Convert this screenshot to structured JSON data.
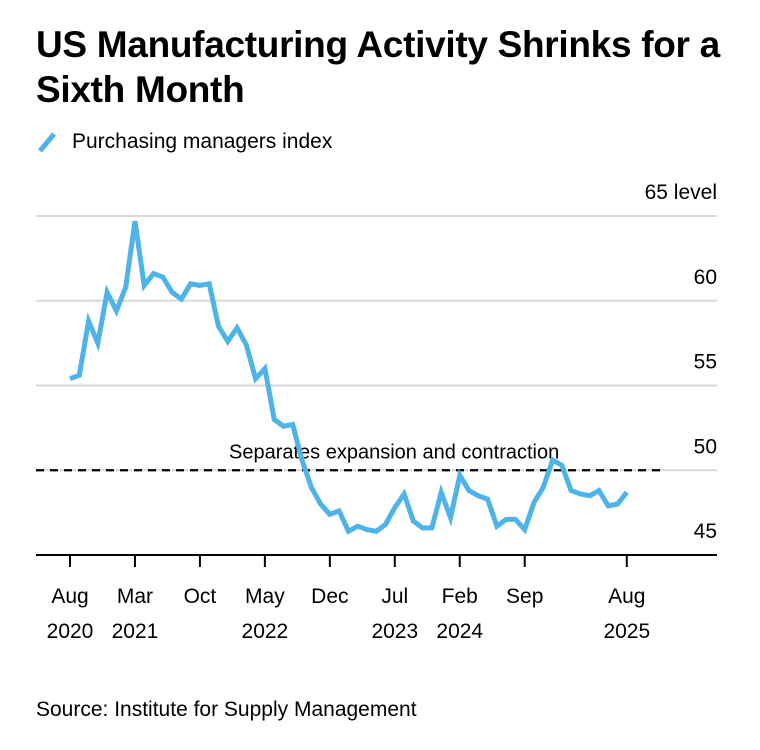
{
  "chart_data": {
    "type": "line",
    "title": "US Manufacturing Activity Shrinks for a Sixth Month",
    "source": "Source: Institute for Supply Management",
    "legend": [
      {
        "name": "Purchasing managers index",
        "color": "#4db3e8"
      }
    ],
    "legend_position": "top-left",
    "ylabel": "",
    "y_unit_label": "65 level",
    "ylim": [
      45,
      65
    ],
    "yticks": [
      65,
      60,
      55,
      50,
      45
    ],
    "ytick_labels": [
      "65 level",
      "60",
      "55",
      "50",
      "45"
    ],
    "y_axis_side": "right",
    "grid": true,
    "x_start": "2020-08",
    "x_end": "2025-08",
    "xticks": [
      {
        "month_index": 0,
        "line1": "Aug",
        "line2": "2020"
      },
      {
        "month_index": 7,
        "line1": "Mar",
        "line2": "2021"
      },
      {
        "month_index": 14,
        "line1": "Oct",
        "line2": ""
      },
      {
        "month_index": 21,
        "line1": "May",
        "line2": "2022"
      },
      {
        "month_index": 28,
        "line1": "Dec",
        "line2": ""
      },
      {
        "month_index": 35,
        "line1": "Jul",
        "line2": "2023"
      },
      {
        "month_index": 42,
        "line1": "Feb",
        "line2": "2024"
      },
      {
        "month_index": 49,
        "line1": "Sep",
        "line2": ""
      },
      {
        "month_index": 60,
        "line1": "Aug",
        "line2": "2025"
      }
    ],
    "reference_line": {
      "value": 50,
      "label": "Separates expansion and contraction",
      "style": "dashed"
    },
    "series": [
      {
        "name": "Purchasing managers index",
        "color": "#4db3e8",
        "values": [
          55.4,
          55.6,
          58.8,
          57.5,
          60.5,
          59.4,
          60.8,
          64.7,
          60.9,
          61.6,
          61.4,
          60.5,
          60.1,
          61.0,
          60.9,
          61.0,
          58.5,
          57.6,
          58.4,
          57.4,
          55.4,
          56.0,
          53.0,
          52.6,
          52.7,
          50.6,
          49.0,
          48.0,
          47.4,
          47.6,
          46.4,
          46.7,
          46.5,
          46.4,
          46.8,
          47.8,
          48.6,
          47.0,
          46.6,
          46.6,
          48.7,
          47.2,
          49.7,
          48.8,
          48.5,
          48.3,
          46.7,
          47.1,
          47.1,
          46.5,
          48.1,
          49.0,
          50.6,
          50.3,
          48.8,
          48.6,
          48.5,
          48.8,
          47.9,
          48.0,
          48.7
        ]
      }
    ]
  }
}
